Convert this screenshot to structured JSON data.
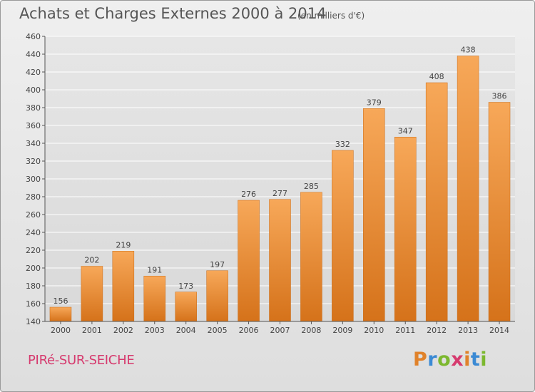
{
  "header": {
    "title": "Achats et Charges Externes 2000 à 2014",
    "subtitle": "(en milliers d'€)"
  },
  "footer": {
    "commune": "PIRé-SUR-SEICHE",
    "brand": "Proxiti"
  },
  "colors": {
    "bar_light": "#f5a351",
    "bar_dark": "#d8761c",
    "axis_text": "#444444",
    "grid": "#ffffff"
  },
  "chart_data": {
    "type": "bar",
    "title": "Achats et Charges Externes 2000 à 2014",
    "subtitle": "(en milliers d'€)",
    "categories": [
      "2000",
      "2001",
      "2002",
      "2003",
      "2004",
      "2005",
      "2006",
      "2007",
      "2008",
      "2009",
      "2010",
      "2011",
      "2012",
      "2013",
      "2014"
    ],
    "values": [
      156,
      202,
      219,
      191,
      173,
      197,
      276,
      277,
      285,
      332,
      379,
      347,
      408,
      438,
      386
    ],
    "ylim": [
      140,
      460
    ],
    "yticks": [
      140,
      160,
      180,
      200,
      220,
      240,
      260,
      280,
      300,
      320,
      340,
      360,
      380,
      400,
      420,
      440,
      460
    ],
    "grid": true,
    "data_labels": true
  }
}
